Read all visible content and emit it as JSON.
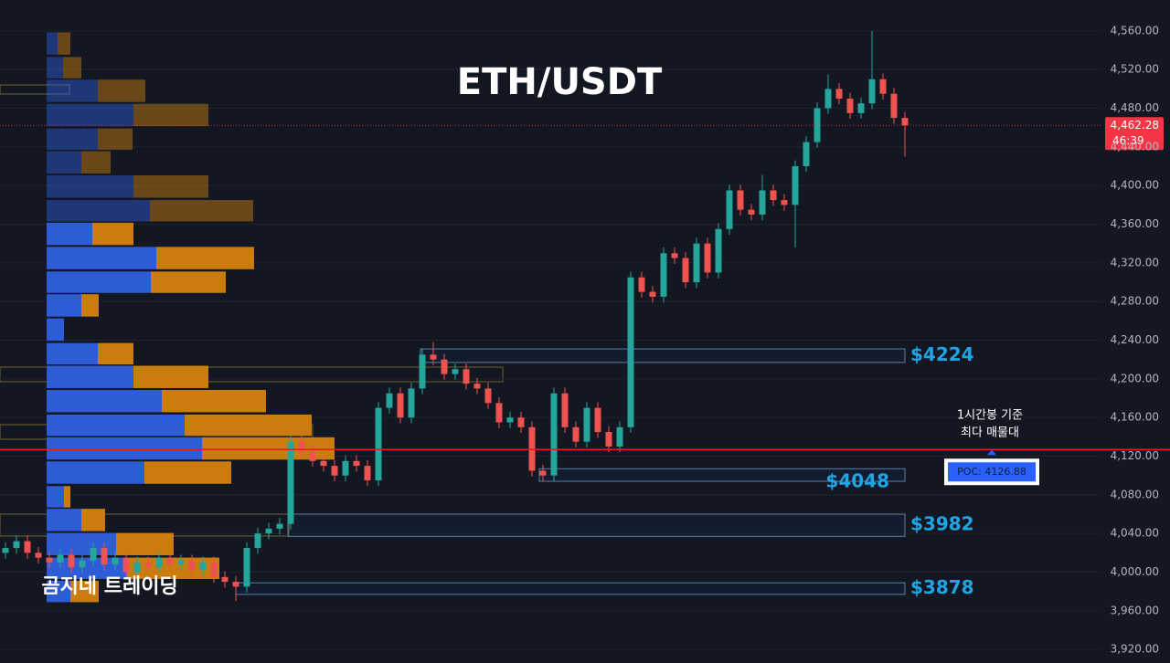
{
  "chart_data": {
    "type": "candlestick",
    "title": "ETH/USDT",
    "watermark": "곰지네 트레이딩",
    "ylim": [
      3906,
      4592
    ],
    "yticks": [
      {
        "value": 3920,
        "label": "3,920.00"
      },
      {
        "value": 3960,
        "label": "3,960.00"
      },
      {
        "value": 4000,
        "label": "4,000.00"
      },
      {
        "value": 4040,
        "label": "4,040.00"
      },
      {
        "value": 4080,
        "label": "4,080.00"
      },
      {
        "value": 4120,
        "label": "4,120.00"
      },
      {
        "value": 4160,
        "label": "4,160.00"
      },
      {
        "value": 4200,
        "label": "4,200.00"
      },
      {
        "value": 4240,
        "label": "4,240.00"
      },
      {
        "value": 4280,
        "label": "4,280.00"
      },
      {
        "value": 4320,
        "label": "4,320.00"
      },
      {
        "value": 4360,
        "label": "4,360.00"
      },
      {
        "value": 4400,
        "label": "4,400.00"
      },
      {
        "value": 4440,
        "label": "4,440.00"
      },
      {
        "value": 4480,
        "label": "4,480.00"
      },
      {
        "value": 4520,
        "label": "4,520.00"
      },
      {
        "value": 4560,
        "label": "4,560.00"
      }
    ],
    "grid": true,
    "up_color": "#26a69a",
    "down_color": "#ef5350",
    "candles": {
      "open": [
        4020,
        4025,
        4032,
        4020,
        4015,
        4010,
        4018,
        4005,
        4012,
        4025,
        4008,
        4015,
        4000,
        4010,
        4005,
        4015,
        4008,
        4012,
        4002,
        4010,
        3995,
        3990,
        3985,
        4025,
        4040,
        4045,
        4050,
        4135,
        4125,
        4115,
        4110,
        4100,
        4115,
        4110,
        4095,
        4170,
        4185,
        4160,
        4190,
        4225,
        4220,
        4205,
        4210,
        4195,
        4190,
        4175,
        4155,
        4160,
        4150,
        4105,
        4100,
        4185,
        4150,
        4135,
        4170,
        4145,
        4130,
        4150,
        4305,
        4290,
        4285,
        4330,
        4325,
        4300,
        4340,
        4310,
        4355,
        4395,
        4375,
        4370,
        4395,
        4385,
        4380,
        4420,
        4445,
        4480,
        4500,
        4490,
        4475,
        4485,
        4510,
        4495,
        4470
      ],
      "high": [
        4031,
        4038,
        4038,
        4026,
        4021,
        4024,
        4024,
        4018,
        4031,
        4031,
        4021,
        4021,
        4016,
        4016,
        4021,
        4021,
        4018,
        4018,
        4016,
        4016,
        4001,
        3996,
        4031,
        4046,
        4051,
        4056,
        4141,
        4141,
        4131,
        4121,
        4116,
        4121,
        4121,
        4116,
        4176,
        4191,
        4191,
        4196,
        4231,
        4238,
        4226,
        4216,
        4216,
        4201,
        4196,
        4181,
        4166,
        4166,
        4156,
        4111,
        4191,
        4191,
        4156,
        4176,
        4176,
        4151,
        4156,
        4311,
        4311,
        4296,
        4336,
        4336,
        4331,
        4346,
        4346,
        4361,
        4401,
        4401,
        4381,
        4411,
        4401,
        4391,
        4426,
        4451,
        4486,
        4515,
        4506,
        4496,
        4491,
        4560,
        4516,
        4501,
        4476
      ],
      "low": [
        4014,
        4019,
        4014,
        4009,
        4004,
        4004,
        3999,
        3999,
        4006,
        4002,
        4002,
        3994,
        3994,
        3999,
        3999,
        4002,
        4002,
        3996,
        3996,
        3989,
        3984,
        3970,
        3979,
        4019,
        4034,
        4039,
        4044,
        4119,
        4109,
        4104,
        4094,
        4094,
        4104,
        4089,
        4089,
        4164,
        4154,
        4154,
        4184,
        4214,
        4199,
        4199,
        4189,
        4184,
        4169,
        4149,
        4149,
        4144,
        4099,
        4094,
        4094,
        4144,
        4129,
        4129,
        4139,
        4124,
        4124,
        4144,
        4284,
        4279,
        4279,
        4319,
        4294,
        4294,
        4304,
        4304,
        4349,
        4369,
        4364,
        4364,
        4379,
        4374,
        4336,
        4414,
        4439,
        4474,
        4484,
        4469,
        4469,
        4479,
        4489,
        4464,
        4430
      ],
      "close": [
        4025,
        4032,
        4020,
        4015,
        4010,
        4018,
        4005,
        4012,
        4025,
        4008,
        4015,
        4000,
        4010,
        4005,
        4015,
        4008,
        4012,
        4002,
        4010,
        3995,
        3990,
        3985,
        4025,
        4040,
        4045,
        4050,
        4135,
        4125,
        4115,
        4110,
        4100,
        4115,
        4110,
        4095,
        4170,
        4185,
        4160,
        4190,
        4225,
        4220,
        4205,
        4210,
        4195,
        4190,
        4175,
        4155,
        4160,
        4150,
        4105,
        4100,
        4185,
        4150,
        4135,
        4170,
        4145,
        4130,
        4150,
        4305,
        4290,
        4285,
        4330,
        4325,
        4300,
        4340,
        4310,
        4355,
        4395,
        4375,
        4370,
        4395,
        4385,
        4380,
        4420,
        4445,
        4480,
        4500,
        4490,
        4475,
        4485,
        4510,
        4495,
        4470,
        4462.28
      ]
    },
    "last_price": {
      "value": 4462.28,
      "label": "4,462.28",
      "countdown": "46:39",
      "color": "#f23645"
    },
    "profile": {
      "buy_color": "#2f5fe0",
      "sell_color": "#d4820f",
      "price_levels": [
        4547,
        4522,
        4498,
        4473,
        4448,
        4424,
        4399,
        4374,
        4350,
        4325,
        4300,
        4276,
        4251,
        4226,
        4202,
        4177,
        4152,
        4128,
        4103,
        4078,
        4054,
        4029,
        4004,
        3980
      ],
      "buy": [
        12,
        18,
        56,
        95,
        56,
        38,
        95,
        113,
        50,
        120,
        114,
        38,
        19,
        56,
        95,
        126,
        151,
        170,
        107,
        19,
        38,
        76,
        88,
        26
      ],
      "sell": [
        14,
        20,
        52,
        82,
        38,
        32,
        82,
        113,
        45,
        107,
        82,
        19,
        0,
        39,
        82,
        114,
        139,
        145,
        95,
        7,
        26,
        63,
        101,
        31
      ]
    },
    "zones": [
      {
        "label": "$4224",
        "top": 4231,
        "bottom": 4217
      },
      {
        "label": "$4048",
        "top": 4107,
        "bottom": 4094
      },
      {
        "label": "$3982",
        "top": 4060,
        "bottom": 4037
      },
      {
        "label": "$3878",
        "top": 3989,
        "bottom": 3977
      }
    ],
    "poc": {
      "value": 4126.88,
      "label": "POC: 4126.88",
      "color": "#e11d1d"
    },
    "annotation": [
      "1시간봉 기준",
      "최다 매물대"
    ]
  }
}
